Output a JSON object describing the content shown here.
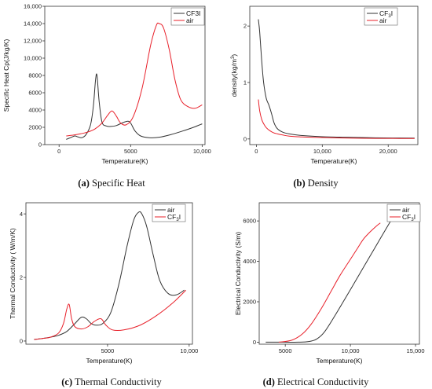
{
  "chart_data": [
    {
      "type": "line",
      "caption_letter": "(a)",
      "caption_text": " Specific Heat",
      "xlabel": "Temperature(K)",
      "ylabel": "Specific Heat Cp(J/kg/K)",
      "xlim": [
        -1000,
        10200
      ],
      "ylim": [
        0,
        16000
      ],
      "xticks": [
        {
          "v": 0,
          "label": "0"
        },
        {
          "v": 5000,
          "label": "5000"
        },
        {
          "v": 10000,
          "label": "10,000"
        }
      ],
      "yticks": [
        {
          "v": 0,
          "label": "0"
        },
        {
          "v": 2000,
          "label": "2000"
        },
        {
          "v": 4000,
          "label": "4000"
        },
        {
          "v": 6000,
          "label": "6000"
        },
        {
          "v": 8000,
          "label": "8000"
        },
        {
          "v": 10000,
          "label": "10,000"
        },
        {
          "v": 12000,
          "label": "12,000"
        },
        {
          "v": 14000,
          "label": "14,000"
        },
        {
          "v": 16000,
          "label": "16,000"
        }
      ],
      "legend_position": "top-right",
      "series": [
        {
          "name": "CF3I",
          "color": "#333333",
          "x": [
            500,
            800,
            1100,
            1300,
            1600,
            1900,
            2200,
            2400,
            2550,
            2650,
            2800,
            3000,
            3300,
            3600,
            4000,
            4400,
            4800,
            5000,
            5300,
            5700,
            6300,
            7000,
            7800,
            8600,
            9400,
            10000
          ],
          "y": [
            600,
            800,
            1000,
            900,
            800,
            1200,
            2300,
            4500,
            7500,
            8000,
            5000,
            2600,
            2150,
            2100,
            2200,
            2500,
            2700,
            2500,
            1600,
            1000,
            800,
            850,
            1150,
            1550,
            2000,
            2400
          ]
        },
        {
          "name": "air",
          "color": "#e8202a",
          "x": [
            500,
            1000,
            1500,
            2000,
            2500,
            3000,
            3400,
            3700,
            4000,
            4300,
            4700,
            5200,
            5800,
            6400,
            6800,
            7000,
            7300,
            7700,
            8100,
            8500,
            9000,
            9500,
            10000
          ],
          "y": [
            1000,
            1100,
            1250,
            1450,
            1800,
            2500,
            3400,
            3900,
            3300,
            2500,
            2300,
            3300,
            6500,
            11500,
            13800,
            14000,
            13500,
            11000,
            7500,
            5200,
            4400,
            4200,
            4600
          ]
        }
      ]
    },
    {
      "type": "line",
      "caption_letter": "(b)",
      "caption_text": " Density",
      "xlabel": "Temperature(K)",
      "ylabel": "density(kg/m",
      "ylabel_sup": "3",
      "ylabel_tail": ")",
      "xlim": [
        -1000,
        24500
      ],
      "ylim": [
        -0.1,
        2.35
      ],
      "xticks": [
        {
          "v": 0,
          "label": "0"
        },
        {
          "v": 10000,
          "label": "10,000"
        },
        {
          "v": 20000,
          "label": "20,000"
        }
      ],
      "yticks": [
        {
          "v": 0,
          "label": "0"
        },
        {
          "v": 1,
          "label": "1"
        },
        {
          "v": 2,
          "label": "2"
        }
      ],
      "legend_position": "top-right",
      "series": [
        {
          "name": "CF",
          "name_sub": "3",
          "name_tail": "I",
          "color": "#333333",
          "x": [
            300,
            500,
            800,
            1100,
            1500,
            1900,
            2300,
            2700,
            3200,
            4000,
            5000,
            7000,
            10000,
            14000,
            18000,
            24000
          ],
          "y": [
            2.12,
            1.9,
            1.4,
            1.0,
            0.72,
            0.6,
            0.45,
            0.28,
            0.18,
            0.12,
            0.09,
            0.06,
            0.04,
            0.03,
            0.02,
            0.015
          ]
        },
        {
          "name": "air",
          "color": "#e8202a",
          "x": [
            300,
            500,
            800,
            1100,
            1500,
            2000,
            2600,
            3200,
            4000,
            5000,
            7000,
            10000,
            14000,
            18000,
            24000
          ],
          "y": [
            0.7,
            0.5,
            0.35,
            0.27,
            0.2,
            0.15,
            0.11,
            0.09,
            0.07,
            0.05,
            0.035,
            0.025,
            0.015,
            0.01,
            0.008
          ]
        }
      ]
    },
    {
      "type": "line",
      "caption_letter": "(c)",
      "caption_text": " Thermal Conductivity",
      "xlabel": "Temperature(K)",
      "ylabel": "Thermal Conductivity ( W/m/K)",
      "xlim": [
        0,
        10200
      ],
      "ylim": [
        -0.1,
        4.35
      ],
      "xticks": [
        {
          "v": 5000,
          "label": "5000"
        },
        {
          "v": 10000,
          "label": "10,000"
        }
      ],
      "yticks": [
        {
          "v": 0,
          "label": "0"
        },
        {
          "v": 2,
          "label": "2"
        },
        {
          "v": 4,
          "label": "4"
        }
      ],
      "legend_position": "top-right",
      "series": [
        {
          "name": "air",
          "color": "#333333",
          "x": [
            500,
            1000,
            1500,
            2000,
            2500,
            3000,
            3400,
            3700,
            4000,
            4300,
            4700,
            5200,
            5700,
            6200,
            6600,
            6900,
            7100,
            7400,
            7800,
            8200,
            8700,
            9200,
            9700
          ],
          "y": [
            0.05,
            0.08,
            0.12,
            0.18,
            0.3,
            0.55,
            0.75,
            0.7,
            0.55,
            0.5,
            0.55,
            0.9,
            1.8,
            3.0,
            3.8,
            4.05,
            4.0,
            3.6,
            2.7,
            1.9,
            1.5,
            1.45,
            1.6
          ]
        },
        {
          "name": "CF",
          "name_sub": "3",
          "name_tail": "I",
          "color": "#e8202a",
          "x": [
            500,
            1000,
            1500,
            2000,
            2300,
            2500,
            2650,
            2800,
            3000,
            3400,
            3800,
            4200,
            4600,
            4900,
            5300,
            6000,
            7000,
            8000,
            9000,
            9800
          ],
          "y": [
            0.05,
            0.08,
            0.12,
            0.25,
            0.55,
            1.0,
            1.15,
            0.7,
            0.45,
            0.38,
            0.45,
            0.62,
            0.7,
            0.5,
            0.35,
            0.35,
            0.5,
            0.8,
            1.2,
            1.6
          ]
        }
      ]
    },
    {
      "type": "line",
      "caption_letter": "(d)",
      "caption_text": " Electrical Conductivity",
      "xlabel": "Temperature(K)",
      "ylabel": "Electrical Conductivity (S/m)",
      "xlim": [
        3000,
        15300
      ],
      "ylim": [
        -100,
        6900
      ],
      "xticks": [
        {
          "v": 5000,
          "label": "5000"
        },
        {
          "v": 10000,
          "label": "10,000"
        },
        {
          "v": 15000,
          "label": "15,000"
        }
      ],
      "yticks": [
        {
          "v": 0,
          "label": "0"
        },
        {
          "v": 2000,
          "label": "2000"
        },
        {
          "v": 4000,
          "label": "4000"
        },
        {
          "v": 6000,
          "label": "6000"
        }
      ],
      "legend_position": "top-left",
      "series": [
        {
          "name": "air",
          "color": "#333333",
          "x": [
            3500,
            5000,
            6000,
            6800,
            7400,
            8000,
            8800,
            10000,
            11000,
            12000,
            13000,
            13400
          ],
          "y": [
            0,
            0,
            0,
            30,
            150,
            500,
            1300,
            2600,
            3700,
            4800,
            5900,
            6300
          ]
        },
        {
          "name": "CF",
          "name_sub": "3",
          "name_tail": "I",
          "color": "#e8202a",
          "x": [
            4500,
            5500,
            6300,
            7000,
            7800,
            8500,
            9200,
            10000,
            10500,
            11000,
            11500,
            12000,
            12300
          ],
          "y": [
            0,
            100,
            400,
            900,
            1700,
            2500,
            3300,
            4100,
            4600,
            5100,
            5450,
            5750,
            5900
          ]
        }
      ]
    }
  ]
}
